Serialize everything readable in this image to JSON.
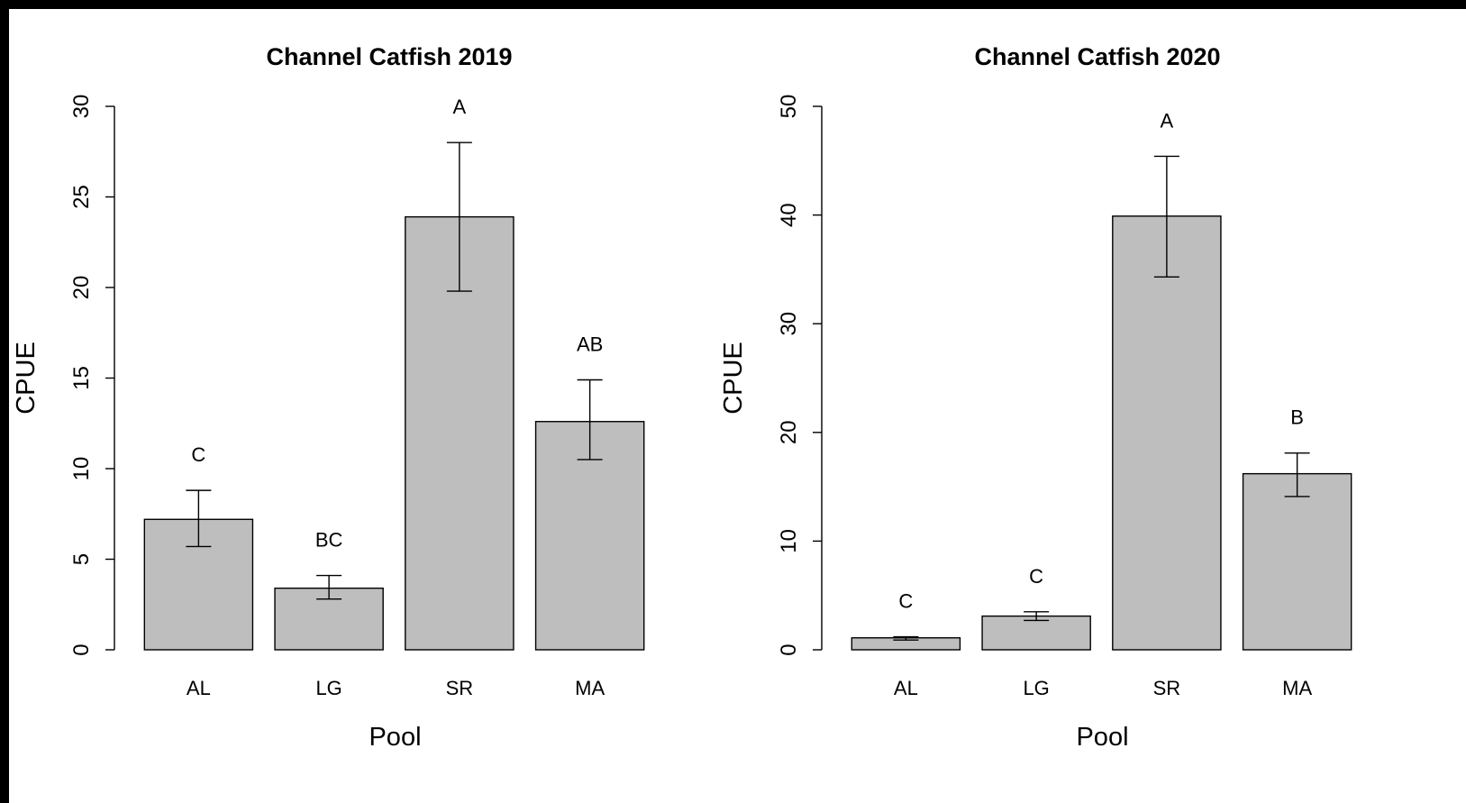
{
  "chart_data": [
    {
      "type": "bar",
      "title": "Channel Catfish 2019",
      "xlabel": "Pool",
      "ylabel": "CPUE",
      "categories": [
        "AL",
        "LG",
        "SR",
        "MA"
      ],
      "values": [
        7.2,
        3.4,
        23.9,
        12.6
      ],
      "error_low": [
        5.7,
        2.8,
        19.8,
        10.5
      ],
      "error_high": [
        8.8,
        4.1,
        28.0,
        14.9
      ],
      "significance_labels": [
        "C",
        "BC",
        "A",
        "AB"
      ],
      "ylim": [
        0,
        30
      ],
      "yticks": [
        0,
        5,
        10,
        15,
        20,
        25,
        30
      ],
      "grid": false,
      "bar_color": "#bebebe"
    },
    {
      "type": "bar",
      "title": "Channel Catfish 2020",
      "xlabel": "Pool",
      "ylabel": "CPUE",
      "categories": [
        "AL",
        "LG",
        "SR",
        "MA"
      ],
      "values": [
        1.1,
        3.1,
        39.9,
        16.2
      ],
      "error_low": [
        0.9,
        2.7,
        34.3,
        14.1
      ],
      "error_high": [
        1.2,
        3.5,
        45.4,
        18.1
      ],
      "significance_labels": [
        "C",
        "C",
        "A",
        "B"
      ],
      "ylim": [
        0,
        50
      ],
      "yticks": [
        0,
        10,
        20,
        30,
        40,
        50
      ],
      "grid": false,
      "bar_color": "#bebebe"
    }
  ]
}
